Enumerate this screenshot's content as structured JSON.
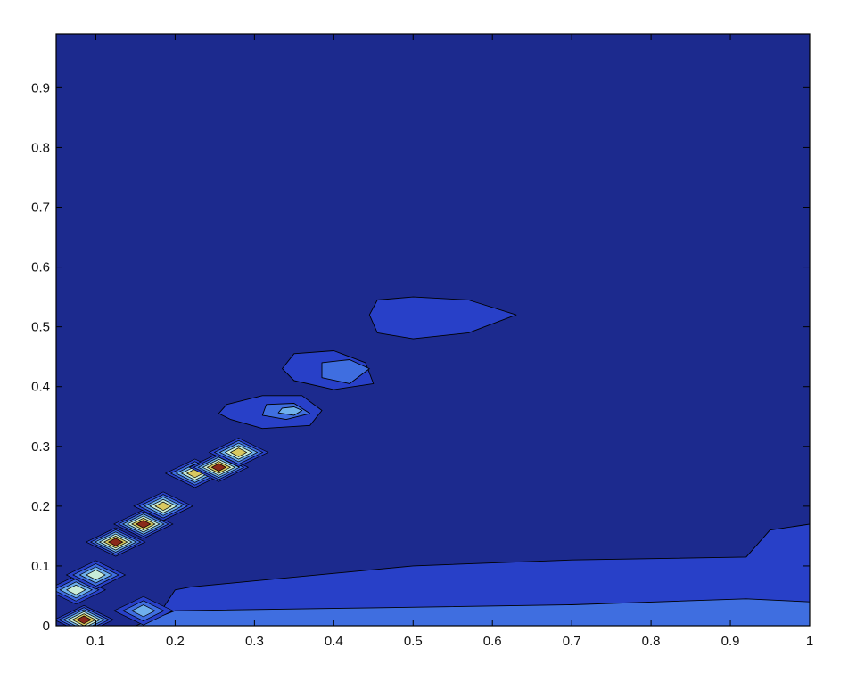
{
  "chart_data": {
    "type": "contour",
    "title": "",
    "xlabel": "",
    "ylabel": "",
    "xlim": [
      0.05,
      1.0
    ],
    "ylim": [
      0,
      0.99
    ],
    "xticks": [
      0.1,
      0.2,
      0.3,
      0.4,
      0.5,
      0.6,
      0.7,
      0.8,
      0.9,
      1
    ],
    "xtick_labels": [
      "0.1",
      "0.2",
      "0.3",
      "0.4",
      "0.5",
      "0.6",
      "0.7",
      "0.8",
      "0.9",
      "1"
    ],
    "yticks": [
      0,
      0.1,
      0.2,
      0.3,
      0.4,
      0.5,
      0.6,
      0.7,
      0.8,
      0.9
    ],
    "ytick_labels": [
      "0",
      "0.1",
      "0.2",
      "0.3",
      "0.4",
      "0.5",
      "0.6",
      "0.7",
      "0.8",
      "0.9"
    ],
    "grid": false,
    "colors": {
      "background_level": "#1c2a8e",
      "levels": [
        "#2840c8",
        "#3f6ee0",
        "#6fb0ec",
        "#c8ecd8",
        "#d8c860",
        "#8a2a1a"
      ]
    },
    "regions": [
      {
        "kind": "ridge",
        "level": 0,
        "points": [
          [
            0.55,
            0.0
          ],
          [
            0.85,
            0.0
          ],
          [
            1.0,
            0.0
          ],
          [
            1.0,
            0.17
          ],
          [
            0.95,
            0.16
          ],
          [
            0.92,
            0.115
          ],
          [
            0.7,
            0.11
          ],
          [
            0.5,
            0.1
          ],
          [
            0.3,
            0.075
          ],
          [
            0.22,
            0.065
          ],
          [
            0.2,
            0.06
          ],
          [
            0.18,
            0.02
          ],
          [
            0.15,
            0.015
          ]
        ]
      },
      {
        "kind": "ridge",
        "level": 1,
        "points": [
          [
            0.2,
            0.025
          ],
          [
            0.45,
            0.03
          ],
          [
            0.7,
            0.035
          ],
          [
            0.92,
            0.045
          ],
          [
            1.0,
            0.04
          ],
          [
            1.0,
            0.0
          ],
          [
            0.15,
            0.0
          ]
        ]
      },
      {
        "kind": "blob",
        "level": 0,
        "points": [
          [
            0.455,
            0.49
          ],
          [
            0.5,
            0.48
          ],
          [
            0.57,
            0.49
          ],
          [
            0.63,
            0.52
          ],
          [
            0.57,
            0.545
          ],
          [
            0.5,
            0.55
          ],
          [
            0.455,
            0.545
          ],
          [
            0.445,
            0.52
          ]
        ]
      },
      {
        "kind": "blob",
        "level": 0,
        "points": [
          [
            0.35,
            0.41
          ],
          [
            0.4,
            0.395
          ],
          [
            0.45,
            0.405
          ],
          [
            0.44,
            0.44
          ],
          [
            0.4,
            0.46
          ],
          [
            0.35,
            0.455
          ],
          [
            0.335,
            0.43
          ]
        ]
      },
      {
        "kind": "blob",
        "level": 1,
        "points": [
          [
            0.385,
            0.415
          ],
          [
            0.42,
            0.405
          ],
          [
            0.445,
            0.43
          ],
          [
            0.42,
            0.445
          ],
          [
            0.385,
            0.44
          ]
        ]
      },
      {
        "kind": "blob",
        "level": 0,
        "points": [
          [
            0.27,
            0.345
          ],
          [
            0.31,
            0.33
          ],
          [
            0.37,
            0.335
          ],
          [
            0.385,
            0.36
          ],
          [
            0.36,
            0.385
          ],
          [
            0.31,
            0.385
          ],
          [
            0.265,
            0.37
          ],
          [
            0.255,
            0.355
          ]
        ]
      },
      {
        "kind": "blob",
        "level": 1,
        "points": [
          [
            0.31,
            0.352
          ],
          [
            0.34,
            0.345
          ],
          [
            0.37,
            0.355
          ],
          [
            0.35,
            0.372
          ],
          [
            0.315,
            0.37
          ]
        ]
      },
      {
        "kind": "blob",
        "level": 2,
        "points": [
          [
            0.33,
            0.356
          ],
          [
            0.35,
            0.352
          ],
          [
            0.36,
            0.36
          ],
          [
            0.35,
            0.366
          ],
          [
            0.335,
            0.364
          ]
        ]
      }
    ],
    "hotspots": [
      {
        "x": 0.085,
        "y": 0.01,
        "peak_level": 5
      },
      {
        "x": 0.075,
        "y": 0.06,
        "peak_level": 3
      },
      {
        "x": 0.1,
        "y": 0.085,
        "peak_level": 3
      },
      {
        "x": 0.125,
        "y": 0.14,
        "peak_level": 5
      },
      {
        "x": 0.16,
        "y": 0.17,
        "peak_level": 5
      },
      {
        "x": 0.185,
        "y": 0.2,
        "peak_level": 4
      },
      {
        "x": 0.225,
        "y": 0.255,
        "peak_level": 4
      },
      {
        "x": 0.255,
        "y": 0.265,
        "peak_level": 5
      },
      {
        "x": 0.28,
        "y": 0.29,
        "peak_level": 4
      },
      {
        "x": 0.16,
        "y": 0.025,
        "peak_level": 2
      }
    ]
  }
}
